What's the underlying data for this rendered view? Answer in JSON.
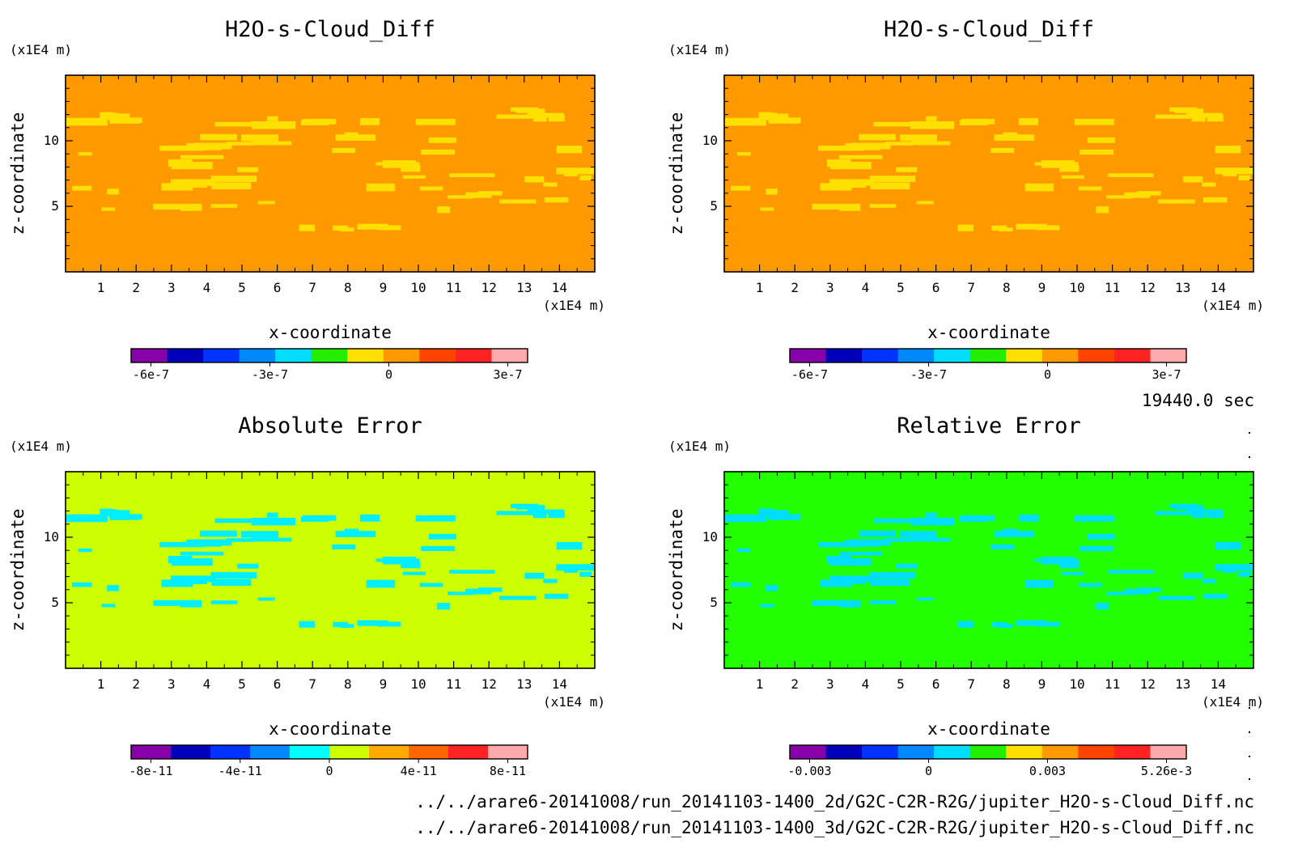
{
  "time_label": "19440.0 sec",
  "footer": {
    "line1": "../../arare6-20141008/run_20141103-1400_2d/G2C-C2R-R2G/jupiter_H2O-s-Cloud_Diff.nc",
    "line2": "../../arare6-20141008/run_20141103-1400_3d/G2C-C2R-R2G/jupiter_H2O-s-Cloud_Diff.nc"
  },
  "chart_data": [
    {
      "type": "heatmap",
      "title": "H2O-s-Cloud_Diff",
      "xlabel": "x-coordinate",
      "ylabel": "z-coordinate",
      "x_unit": "(x1E4 m)",
      "y_unit": "(x1E4 m)",
      "xlim": [
        0,
        15
      ],
      "ylim": [
        0,
        15
      ],
      "xticks": [
        "1",
        "2",
        "3",
        "4",
        "5",
        "6",
        "7",
        "8",
        "9",
        "10",
        "11",
        "12",
        "13",
        "14"
      ],
      "yticks": [
        "5",
        "10"
      ],
      "background_color": "#ff9900",
      "feature_color": "#ffe000",
      "colorbar": {
        "colors": [
          "#8800aa",
          "#0000bb",
          "#0033ff",
          "#0088ff",
          "#00ddff",
          "#22ee00",
          "#ffe000",
          "#ff9900",
          "#ff4400",
          "#ff2222",
          "#ffaaaa"
        ],
        "ticks": [
          "-6e-7",
          "-3e-7",
          "0",
          "3e-7"
        ]
      }
    },
    {
      "type": "heatmap",
      "title": "H2O-s-Cloud_Diff",
      "xlabel": "x-coordinate",
      "ylabel": "z-coordinate",
      "x_unit": "(x1E4 m)",
      "y_unit": "(x1E4 m)",
      "xlim": [
        0,
        15
      ],
      "ylim": [
        0,
        15
      ],
      "xticks": [
        "1",
        "2",
        "3",
        "4",
        "5",
        "6",
        "7",
        "8",
        "9",
        "10",
        "11",
        "12",
        "13",
        "14"
      ],
      "yticks": [
        "5",
        "10"
      ],
      "background_color": "#ff9900",
      "feature_color": "#ffe000",
      "colorbar": {
        "colors": [
          "#8800aa",
          "#0000bb",
          "#0033ff",
          "#0088ff",
          "#00ddff",
          "#22ee00",
          "#ffe000",
          "#ff9900",
          "#ff4400",
          "#ff2222",
          "#ffaaaa"
        ],
        "ticks": [
          "-6e-7",
          "-3e-7",
          "0",
          "3e-7"
        ]
      }
    },
    {
      "type": "heatmap",
      "title": "Absolute Error",
      "xlabel": "x-coordinate",
      "ylabel": "z-coordinate",
      "x_unit": "(x1E4 m)",
      "y_unit": "(x1E4 m)",
      "xlim": [
        0,
        15
      ],
      "ylim": [
        0,
        15
      ],
      "xticks": [
        "1",
        "2",
        "3",
        "4",
        "5",
        "6",
        "7",
        "8",
        "9",
        "10",
        "11",
        "12",
        "13",
        "14"
      ],
      "yticks": [
        "5",
        "10"
      ],
      "background_color": "#ccff00",
      "feature_color": "#00eeff",
      "colorbar": {
        "colors": [
          "#8800aa",
          "#0000bb",
          "#0033ff",
          "#0088ff",
          "#00ffff",
          "#ccff00",
          "#ffaa00",
          "#ff6600",
          "#ff2222",
          "#ffaaaa"
        ],
        "ticks": [
          "-8e-11",
          "-4e-11",
          "0",
          "4e-11",
          "8e-11"
        ]
      }
    },
    {
      "type": "heatmap",
      "title": "Relative Error",
      "xlabel": "x-coordinate",
      "ylabel": "z-coordinate",
      "x_unit": "(x1E4 m)",
      "y_unit": "(x1E4 m)",
      "xlim": [
        0,
        15
      ],
      "ylim": [
        0,
        15
      ],
      "xticks": [
        "1",
        "2",
        "3",
        "4",
        "5",
        "6",
        "7",
        "8",
        "9",
        "10",
        "11",
        "12",
        "13",
        "14"
      ],
      "yticks": [
        "5",
        "10"
      ],
      "background_color": "#22ff00",
      "feature_color": "#00ddff",
      "colorbar": {
        "colors": [
          "#8800aa",
          "#0000bb",
          "#0033ff",
          "#0088ff",
          "#00ddff",
          "#22ee00",
          "#ffe000",
          "#ff9900",
          "#ff4400",
          "#ff2222",
          "#ffaaaa"
        ],
        "ticks": [
          "-0.003",
          "0",
          "0.003",
          "5.26e-3"
        ]
      }
    }
  ]
}
